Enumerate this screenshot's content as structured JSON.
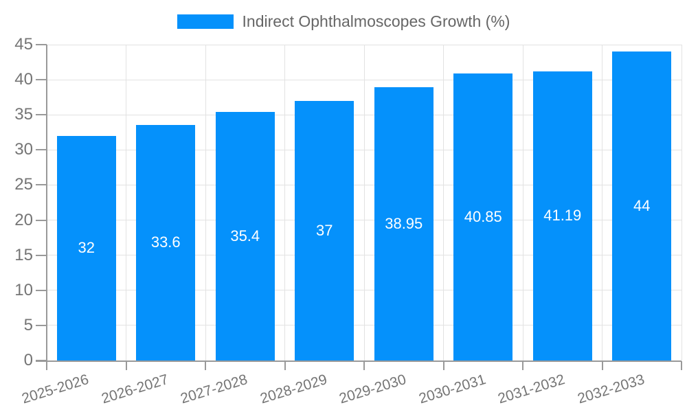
{
  "chart_data": {
    "type": "bar",
    "legend": "Indirect Ophthalmoscopes Growth (%)",
    "legend_position": "top-center",
    "categories": [
      "2025-2026",
      "2026-2027",
      "2027-2028",
      "2028-2029",
      "2029-2030",
      "2030-2031",
      "2031-2032",
      "2032-2033"
    ],
    "values": [
      32,
      33.6,
      35.4,
      37,
      38.95,
      40.85,
      41.19,
      44
    ],
    "value_labels": [
      "32",
      "33.6",
      "35.4",
      "37",
      "38.95",
      "40.85",
      "41.19",
      "44"
    ],
    "ylim": [
      0,
      45
    ],
    "ytick_step": 5,
    "ytick_labels": [
      "0",
      "5",
      "10",
      "15",
      "20",
      "25",
      "30",
      "35",
      "40",
      "45"
    ],
    "grid": true,
    "xlabel": "",
    "ylabel": "",
    "colors": {
      "bar": "#0591fb",
      "grid": "#e2e2e2",
      "axis": "#999999",
      "tick_label": "#757575",
      "legend_text": "#666666",
      "value_label": "#ffffff",
      "background": "#ffffff"
    }
  }
}
